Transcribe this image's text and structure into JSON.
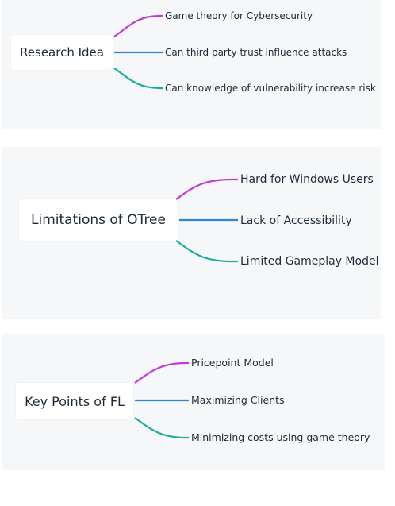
{
  "colors": {
    "panel_bg": "#f5f7f9",
    "branch_top": "#c43bd6",
    "branch_middle": "#2f86d8",
    "branch_bottom": "#19ad9f",
    "text": "#1f2a37"
  },
  "mindmaps": [
    {
      "root": "Research Idea",
      "branches": [
        "Game theory for Cybersecurity",
        "Can third party trust influence attacks",
        "Can knowledge of vulnerability increase risk"
      ]
    },
    {
      "root": "Limitations of OTree",
      "branches": [
        "Hard for Windows Users",
        "Lack of Accessibility",
        "Limited Gameplay Model"
      ]
    },
    {
      "root": "Key Points of FL",
      "branches": [
        "Pricepoint Model",
        "Maximizing Clients",
        "Minimizing costs using game theory"
      ]
    }
  ]
}
